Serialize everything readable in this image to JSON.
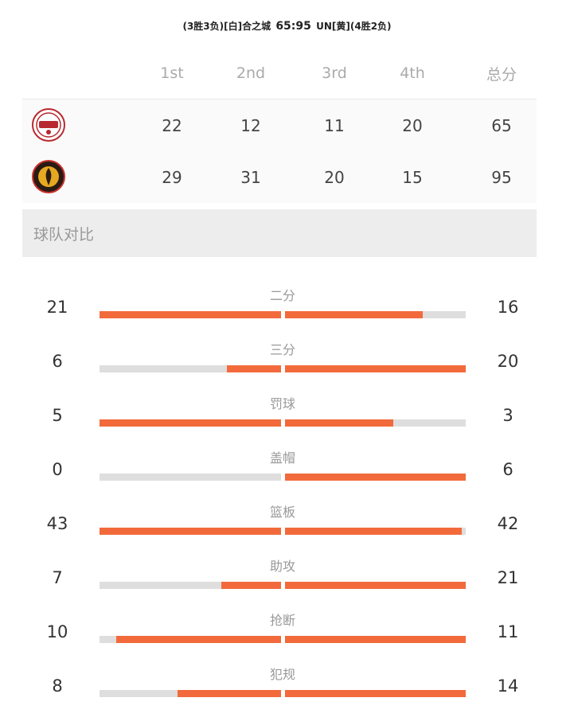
{
  "header": {
    "home_record": "(3胜3负)",
    "home_color": "[白]",
    "home_name": "合之城",
    "score": "65:95",
    "away_name": "UN",
    "away_color": "[黄]",
    "away_record": "(4胜2负)"
  },
  "quarters": {
    "headers": [
      "1st",
      "2nd",
      "3rd",
      "4th",
      "总分"
    ],
    "home": {
      "logo": "home-team-logo",
      "scores": [
        "22",
        "12",
        "11",
        "20",
        "65"
      ]
    },
    "away": {
      "logo": "away-team-logo",
      "scores": [
        "29",
        "31",
        "20",
        "15",
        "95"
      ]
    }
  },
  "section_title": "球队对比",
  "colors": {
    "accent": "#f26a3c",
    "track": "#dedede",
    "section_bg": "#ededed"
  },
  "stats": [
    {
      "label": "二分",
      "left": "21",
      "right": "16",
      "left_frac": 1.0,
      "right_frac": 0.76
    },
    {
      "label": "三分",
      "left": "6",
      "right": "20",
      "left_frac": 0.3,
      "right_frac": 1.0
    },
    {
      "label": "罚球",
      "left": "5",
      "right": "3",
      "left_frac": 1.0,
      "right_frac": 0.6
    },
    {
      "label": "盖帽",
      "left": "0",
      "right": "6",
      "left_frac": 0.0,
      "right_frac": 1.0
    },
    {
      "label": "篮板",
      "left": "43",
      "right": "42",
      "left_frac": 1.0,
      "right_frac": 0.98
    },
    {
      "label": "助攻",
      "left": "7",
      "right": "21",
      "left_frac": 0.33,
      "right_frac": 1.0
    },
    {
      "label": "抢断",
      "left": "10",
      "right": "11",
      "left_frac": 0.91,
      "right_frac": 1.0
    },
    {
      "label": "犯规",
      "left": "8",
      "right": "14",
      "left_frac": 0.57,
      "right_frac": 1.0
    }
  ]
}
